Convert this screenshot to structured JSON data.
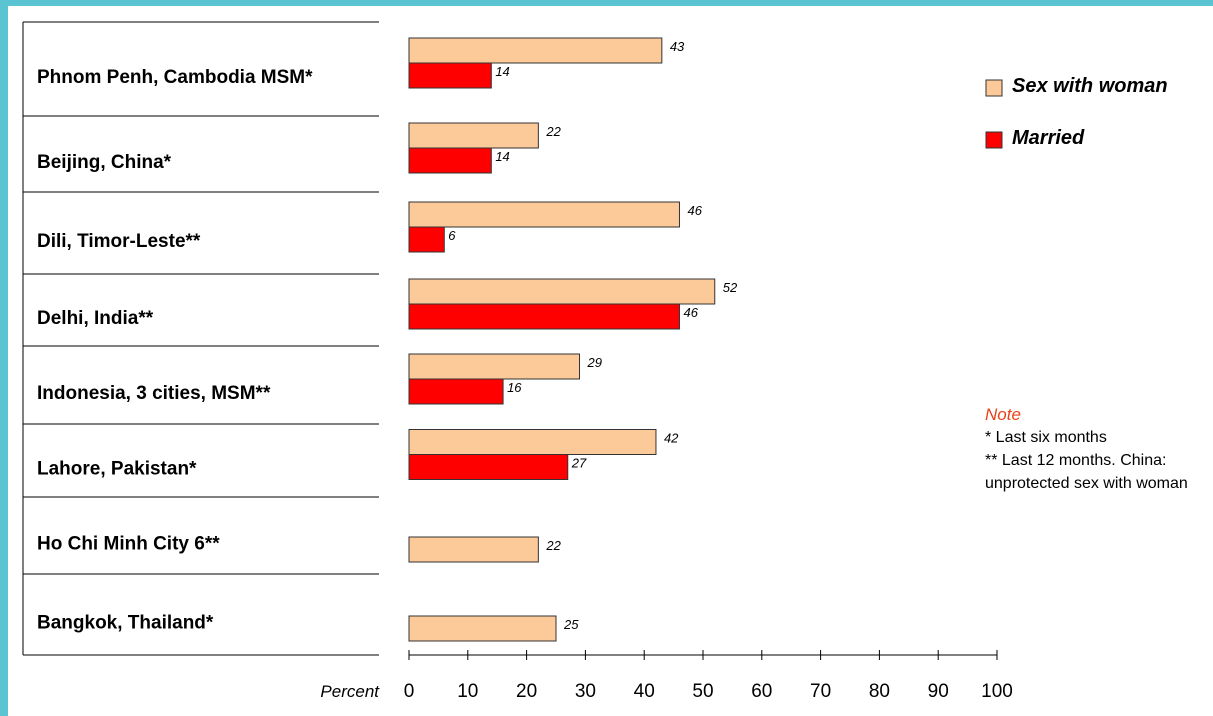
{
  "chart_data": {
    "type": "bar",
    "orientation": "horizontal",
    "categories": [
      "Phnom Penh, Cambodia MSM*",
      "Beijing, China*",
      "Dili, Timor-Leste**",
      "Delhi, India**",
      "Indonesia, 3 cities, MSM**",
      "Lahore, Pakistan*",
      "Ho Chi Minh City 6**",
      "Bangkok, Thailand*"
    ],
    "series": [
      {
        "name": "Sex with woman",
        "color": "#fcc999",
        "values": [
          43,
          22,
          46,
          52,
          29,
          42,
          22,
          25
        ]
      },
      {
        "name": "Married",
        "color": "#ff0000",
        "values": [
          14,
          14,
          6,
          46,
          16,
          27,
          null,
          null
        ]
      }
    ],
    "xlabel": "Percent",
    "xlim": [
      0,
      100
    ],
    "ticks": [
      0,
      10,
      20,
      30,
      40,
      50,
      60,
      70,
      80,
      90,
      100
    ],
    "tick_labels": [
      "0",
      "10",
      "20",
      "30",
      "40",
      "50",
      "60",
      "70",
      "80",
      "90",
      "100"
    ],
    "legend_position": "top-right",
    "grid": false
  },
  "note": {
    "title": "Note",
    "line1": "*  Last six months",
    "line2": "** Last 12 months. China: unprotected sex with woman"
  }
}
